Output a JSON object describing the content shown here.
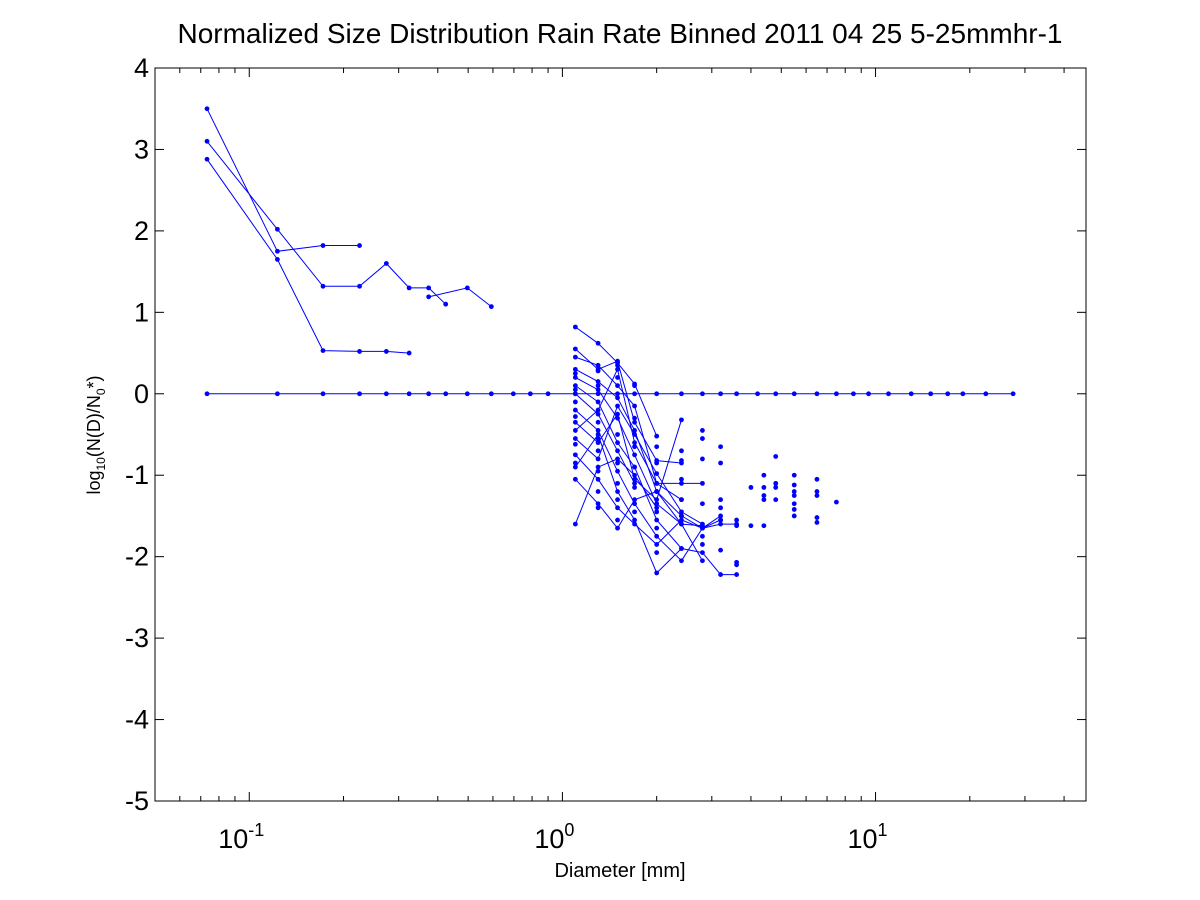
{
  "chart_data": {
    "type": "line",
    "title": "Normalized Size Distribution Rain Rate Binned 2011 04 25 5-25mmhr-1",
    "xlabel": "Diameter [mm]",
    "ylabel": {
      "parts": [
        "log",
        "10",
        "(N(D)/N",
        "0",
        "*)"
      ]
    },
    "xscale": "log",
    "xlim": [
      0.05,
      47
    ],
    "ylim": [
      -5,
      4
    ],
    "yticks": [
      4,
      3,
      2,
      1,
      0,
      -1,
      -2,
      -3,
      -4,
      -5
    ],
    "ytick_labels": [
      "4",
      "3",
      "2",
      "1",
      "0",
      "-1",
      "-2",
      "-3",
      "-4",
      "-5"
    ],
    "xticks_major": [
      {
        "base": "10",
        "exp": "-1",
        "value": 0.1
      },
      {
        "base": "10",
        "exp": "0",
        "value": 1
      },
      {
        "base": "10",
        "exp": "1",
        "value": 10
      }
    ],
    "grid": false,
    "series_color": "#0000ff",
    "series": [
      {
        "x": [
          0.0733,
          0.123,
          0.172,
          0.225,
          0.274,
          0.324,
          0.374,
          0.424,
          0.497,
          0.593,
          0.697,
          0.79,
          0.9,
          1.1,
          1.3,
          1.5,
          1.7,
          2.0,
          2.4,
          2.8,
          3.2,
          3.6,
          4.2,
          4.8,
          5.5,
          6.5,
          7.5,
          8.5,
          9.5,
          11.0,
          13.0,
          15.0,
          17.0,
          19.0,
          22.5,
          27.5
        ],
        "y": [
          0,
          0,
          0,
          0,
          0,
          0,
          0,
          0,
          0,
          0,
          0,
          0,
          0,
          0,
          0,
          0,
          0,
          0,
          0,
          0,
          0,
          0,
          0,
          0,
          0,
          0,
          0,
          0,
          0,
          0,
          0,
          0,
          0,
          0,
          0,
          0
        ]
      },
      {
        "x": [
          0.0733,
          0.123,
          0.172,
          0.225
        ],
        "y": [
          3.5,
          1.75,
          1.82,
          1.82
        ]
      },
      {
        "x": [
          0.0733,
          0.123,
          0.172,
          0.225,
          0.274,
          0.324,
          0.374,
          0.424
        ],
        "y": [
          3.1,
          2.02,
          1.32,
          1.32,
          1.6,
          1.3,
          1.3,
          1.1
        ]
      },
      {
        "x": [
          0.0733,
          0.123,
          0.172,
          0.225,
          0.274,
          0.324
        ],
        "y": [
          2.88,
          1.65,
          0.53,
          0.52,
          0.52,
          0.5
        ]
      },
      {
        "x": [
          0.374,
          0.497,
          0.593
        ],
        "y": [
          1.19,
          1.3,
          1.07
        ]
      },
      {
        "x": [
          1.1,
          1.3,
          1.5,
          1.7,
          2.0
        ],
        "y": [
          0.82,
          0.62,
          0.38,
          0.12,
          -0.52
        ]
      },
      {
        "x": [
          1.1,
          1.3,
          1.5,
          1.7,
          2.0,
          2.4
        ],
        "y": [
          0.55,
          0.3,
          0.4,
          -0.35,
          -0.82,
          -0.85
        ]
      },
      {
        "x": [
          1.1,
          1.3,
          1.5,
          1.7,
          2.0,
          2.4,
          2.8
        ],
        "y": [
          0.45,
          0.35,
          0.1,
          -0.15,
          -1.1,
          -1.1,
          -1.1
        ]
      },
      {
        "x": [
          1.1,
          1.3,
          1.5,
          1.7,
          2.0,
          2.4,
          2.8,
          3.2
        ],
        "y": [
          0.3,
          0.15,
          -0.05,
          -0.45,
          -1.2,
          -1.5,
          -1.65,
          -1.55
        ]
      },
      {
        "x": [
          1.1,
          1.3,
          1.5,
          1.7,
          2.0,
          2.4,
          2.8
        ],
        "y": [
          0.2,
          0.05,
          -0.3,
          -0.75,
          -1.35,
          -1.6,
          -2.05
        ]
      },
      {
        "x": [
          1.1,
          1.3,
          1.5,
          1.7,
          2.0,
          2.4,
          2.8,
          3.2,
          3.6
        ],
        "y": [
          0.1,
          -0.1,
          -0.6,
          -0.9,
          -1.55,
          -1.9,
          -1.95,
          -2.22,
          -2.22
        ]
      },
      {
        "x": [
          1.1,
          1.3,
          1.5,
          1.7,
          2.0,
          2.4,
          2.8,
          3.2,
          3.6
        ],
        "y": [
          -0.2,
          -0.45,
          -0.95,
          -1.35,
          -1.75,
          -2.05,
          -1.65,
          -1.6,
          -1.6
        ]
      },
      {
        "x": [
          1.1,
          1.3,
          1.5,
          1.7,
          2.0,
          2.4
        ],
        "y": [
          -0.35,
          -0.6,
          -0.25,
          -1.05,
          -1.3,
          -0.32
        ]
      },
      {
        "x": [
          1.1,
          1.3,
          1.5,
          1.7,
          2.0,
          2.4,
          2.8
        ],
        "y": [
          -0.55,
          -0.8,
          -0.15,
          -0.5,
          -0.98,
          -1.45,
          -1.6
        ]
      },
      {
        "x": [
          1.1,
          1.3,
          1.5,
          1.7,
          2.0,
          2.4,
          2.8,
          3.2
        ],
        "y": [
          -0.75,
          -1.05,
          -1.4,
          -1.6,
          -1.85,
          -1.55,
          -1.65,
          -1.5
        ]
      },
      {
        "x": [
          1.1,
          1.3,
          1.5,
          1.7,
          2.0,
          2.4
        ],
        "y": [
          -0.9,
          -0.5,
          -1.2,
          -1.55,
          -2.2,
          -1.9
        ]
      },
      {
        "x": [
          1.1,
          1.3,
          1.5,
          1.7,
          2.0,
          2.4,
          2.8
        ],
        "y": [
          -1.05,
          -1.35,
          -1.65,
          -1.3,
          -1.2,
          -1.6,
          -1.62
        ]
      },
      {
        "x": [
          1.1,
          1.3,
          1.5,
          1.7,
          2.0
        ],
        "y": [
          -1.6,
          -0.9,
          -0.8,
          -1.0,
          -1.4
        ]
      },
      {
        "x": [
          1.1,
          1.3,
          1.5,
          1.7
        ],
        "y": [
          0.0,
          -0.25,
          -0.7,
          -1.1
        ]
      },
      {
        "x": [
          1.1,
          1.3,
          1.5,
          1.7,
          2.0,
          2.4
        ],
        "y": [
          -0.45,
          -0.2,
          0.3,
          -0.6,
          -1.1,
          -1.3
        ]
      }
    ],
    "scatter_points": {
      "x": [
        1.1,
        1.1,
        1.1,
        1.1,
        1.1,
        1.1,
        1.3,
        1.3,
        1.3,
        1.3,
        1.3,
        1.3,
        1.3,
        1.3,
        1.5,
        1.5,
        1.5,
        1.5,
        1.5,
        1.5,
        1.5,
        1.7,
        1.7,
        1.7,
        1.7,
        1.7,
        1.7,
        2.0,
        2.0,
        2.0,
        2.0,
        2.0,
        2.0,
        2.4,
        2.4,
        2.4,
        2.4,
        2.4,
        2.8,
        2.8,
        2.8,
        2.8,
        2.8,
        2.8,
        3.2,
        3.2,
        3.2,
        3.2,
        3.2,
        3.2,
        3.6,
        3.6,
        3.6,
        3.6,
        4.0,
        4.0,
        4.4,
        4.4,
        4.4,
        4.4,
        4.4,
        4.8,
        4.8,
        4.8,
        4.8,
        5.5,
        5.5,
        5.5,
        5.5,
        5.5,
        5.5,
        5.5,
        6.5,
        6.5,
        6.5,
        6.5,
        6.5,
        7.5
      ],
      "y": [
        0.25,
        0.05,
        -0.1,
        -0.28,
        -0.62,
        -0.85,
        0.28,
        0.1,
        -0.35,
        -0.55,
        -0.7,
        -0.95,
        -1.2,
        -1.4,
        0.35,
        0.2,
        -0.5,
        -0.85,
        -1.1,
        -1.3,
        -1.55,
        0.1,
        -0.3,
        -0.65,
        -0.9,
        -1.15,
        -1.45,
        -0.65,
        -0.85,
        -1.2,
        -1.45,
        -1.65,
        -1.95,
        -0.7,
        -0.82,
        -1.05,
        -1.3,
        -1.5,
        -0.45,
        -0.55,
        -0.8,
        -1.35,
        -1.75,
        -1.85,
        -0.65,
        -0.85,
        -1.3,
        -1.4,
        -1.55,
        -1.92,
        -1.55,
        -1.62,
        -2.07,
        -2.1,
        -1.15,
        -1.62,
        -1.0,
        -1.15,
        -1.25,
        -1.3,
        -1.62,
        -0.77,
        -1.1,
        -1.15,
        -1.3,
        -1.0,
        -1.12,
        -1.2,
        -1.25,
        -1.35,
        -1.42,
        -1.5,
        -1.05,
        -1.2,
        -1.25,
        -1.52,
        -1.58,
        -1.33
      ]
    }
  }
}
